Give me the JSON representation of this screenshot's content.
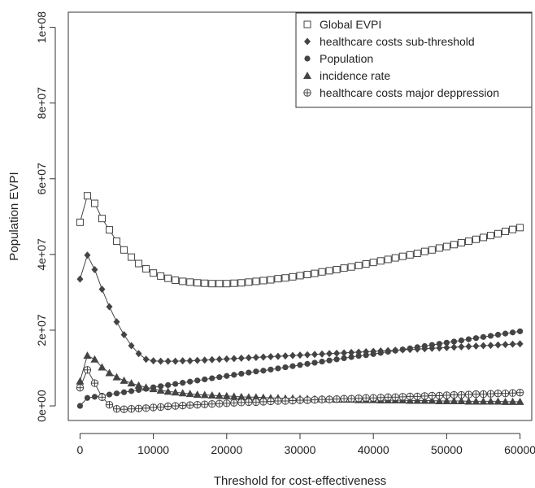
{
  "chart_data": {
    "type": "line",
    "title": "",
    "xlabel": "Threshold for cost-effectiveness",
    "ylabel": "Population EVPI",
    "xlim": [
      0,
      60000
    ],
    "ylim": [
      0,
      100000000
    ],
    "x_ticks": [
      0,
      10000,
      20000,
      30000,
      40000,
      50000,
      60000
    ],
    "x_tick_labels": [
      "0",
      "10000",
      "20000",
      "30000",
      "40000",
      "50000",
      "60000"
    ],
    "y_ticks": [
      0,
      20000000,
      40000000,
      60000000,
      80000000,
      100000000
    ],
    "y_tick_labels": [
      "0e+00",
      "2e+07",
      "4e+07",
      "6e+07",
      "8e+07",
      "1e+08"
    ],
    "grid": false,
    "legend_position": "top-right",
    "x_step": 1000,
    "series": [
      {
        "name": "Global EVPI",
        "marker": "open-square",
        "color": "#444444",
        "values": [
          48500000,
          55500000,
          53500000,
          49500000,
          46500000,
          43500000,
          41200000,
          39300000,
          37600000,
          36200000,
          35100000,
          34300000,
          33700000,
          33200000,
          32900000,
          32700000,
          32500000,
          32400000,
          32300000,
          32300000,
          32300000,
          32400000,
          32500000,
          32700000,
          32900000,
          33100000,
          33300000,
          33600000,
          33800000,
          34100000,
          34400000,
          34700000,
          35000000,
          35400000,
          35700000,
          36000000,
          36400000,
          36700000,
          37100000,
          37500000,
          37900000,
          38300000,
          38700000,
          39100000,
          39500000,
          39900000,
          40300000,
          40800000,
          41200000,
          41700000,
          42100000,
          42600000,
          43100000,
          43500000,
          44000000,
          44500000,
          45000000,
          45500000,
          46100000,
          46600000,
          47100000
        ]
      },
      {
        "name": "healthcare costs sub-threshold",
        "marker": "filled-diamond",
        "color": "#444444",
        "values": [
          33500000,
          39800000,
          36000000,
          30800000,
          26200000,
          22200000,
          18800000,
          15900000,
          13800000,
          12300000,
          11900000,
          11800000,
          11800000,
          11800000,
          11900000,
          11900000,
          12000000,
          12100000,
          12200000,
          12300000,
          12400000,
          12500000,
          12600000,
          12700000,
          12800000,
          12900000,
          13000000,
          13100000,
          13200000,
          13300000,
          13400000,
          13500000,
          13600000,
          13700000,
          13800000,
          13900000,
          14000000,
          14100000,
          14200000,
          14300000,
          14400000,
          14500000,
          14600000,
          14700000,
          14800000,
          14900000,
          15000000,
          15100000,
          15200000,
          15300000,
          15400000,
          15500000,
          15600000,
          15700000,
          15800000,
          15900000,
          16000000,
          16100000,
          16200000,
          16300000,
          16400000
        ]
      },
      {
        "name": "Population",
        "marker": "filled-circle",
        "color": "#444444",
        "values": [
          0,
          2100000,
          2400000,
          2700000,
          3000000,
          3300000,
          3600000,
          3900000,
          4200000,
          4500000,
          4900000,
          5200000,
          5500000,
          5800000,
          6100000,
          6400000,
          6700000,
          7000000,
          7300000,
          7600000,
          7900000,
          8200000,
          8500000,
          8800000,
          9100000,
          9300000,
          9600000,
          9900000,
          10200000,
          10500000,
          10800000,
          11100000,
          11400000,
          11700000,
          12000000,
          12300000,
          12600000,
          12900000,
          13200000,
          13400000,
          13700000,
          14000000,
          14300000,
          14600000,
          14900000,
          15200000,
          15500000,
          15800000,
          16100000,
          16400000,
          16700000,
          17000000,
          17300000,
          17600000,
          17900000,
          18200000,
          18500000,
          18800000,
          19100000,
          19400000,
          19700000
        ]
      },
      {
        "name": "incidence rate",
        "marker": "filled-triangle",
        "color": "#444444",
        "values": [
          6500000,
          13300000,
          12300000,
          10200000,
          8700000,
          7600000,
          6700000,
          6000000,
          5400000,
          4900000,
          4500000,
          4100000,
          3800000,
          3600000,
          3400000,
          3200000,
          3000000,
          2900000,
          2800000,
          2700000,
          2600000,
          2500000,
          2400000,
          2300000,
          2300000,
          2200000,
          2100000,
          2100000,
          2000000,
          2000000,
          1900000,
          1900000,
          1800000,
          1800000,
          1800000,
          1700000,
          1700000,
          1700000,
          1600000,
          1600000,
          1600000,
          1500000,
          1500000,
          1500000,
          1500000,
          1400000,
          1400000,
          1400000,
          1400000,
          1300000,
          1300000,
          1300000,
          1300000,
          1200000,
          1200000,
          1200000,
          1200000,
          1200000,
          1100000,
          1100000,
          1100000
        ]
      },
      {
        "name": "healthcare costs major deppression",
        "marker": "circle-plus",
        "color": "#444444",
        "values": [
          4800000,
          9500000,
          6000000,
          2300000,
          300000,
          -800000,
          -900000,
          -800000,
          -700000,
          -600000,
          -400000,
          -300000,
          -100000,
          0,
          100000,
          200000,
          300000,
          400000,
          500000,
          600000,
          700000,
          800000,
          900000,
          1000000,
          1000000,
          1100000,
          1200000,
          1300000,
          1300000,
          1400000,
          1500000,
          1500000,
          1600000,
          1700000,
          1700000,
          1800000,
          1900000,
          1900000,
          2000000,
          2100000,
          2100000,
          2200000,
          2300000,
          2300000,
          2400000,
          2500000,
          2500000,
          2600000,
          2700000,
          2700000,
          2800000,
          2900000,
          2900000,
          3000000,
          3100000,
          3100000,
          3200000,
          3300000,
          3300000,
          3400000,
          3500000
        ]
      }
    ]
  }
}
